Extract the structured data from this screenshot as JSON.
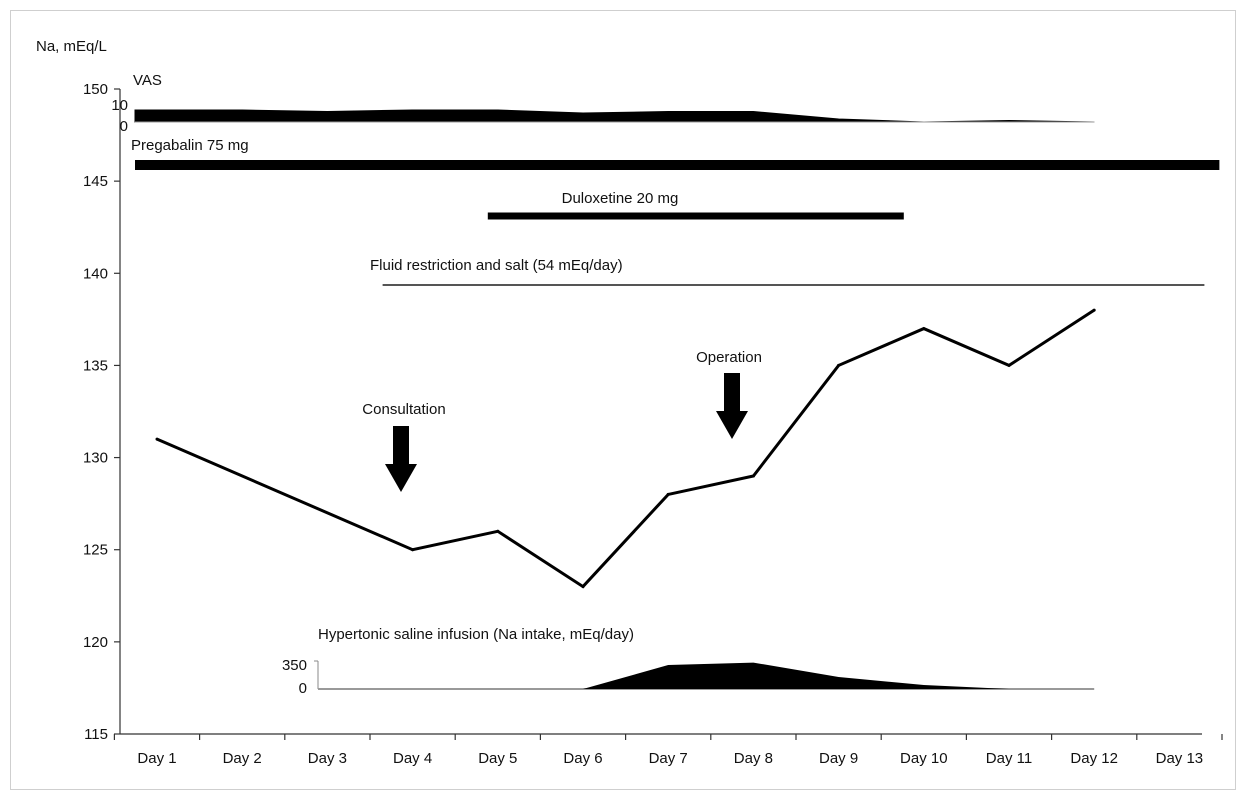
{
  "chart_data": {
    "type": "line",
    "ylabel": "Na, mEq/L",
    "ylim": [
      115,
      150
    ],
    "yticks": [
      115,
      120,
      125,
      130,
      135,
      140,
      145,
      150
    ],
    "categories": [
      "Day 1",
      "Day 2",
      "Day 3",
      "Day 4",
      "Day 5",
      "Day 6",
      "Day 7",
      "Day 8",
      "Day 9",
      "Day 10",
      "Day 11",
      "Day 12",
      "Day 13"
    ],
    "series": [
      {
        "x": [
          "Day 1",
          "Day 4",
          "Day 5",
          "Day 6",
          "Day 7",
          "Day 8",
          "Day 9",
          "Day 10",
          "Day 11",
          "Day 12"
        ],
        "values": [
          131,
          125,
          126,
          123,
          128,
          129,
          135,
          137,
          135,
          138
        ]
      }
    ],
    "annotations": {
      "arrows": [
        {
          "label": "Consultation",
          "x": "Day 4"
        },
        {
          "label": "Operation",
          "x": "Day 8"
        }
      ],
      "vas": {
        "label": "VAS",
        "scale_max_label": "10",
        "scale_min_label": "0",
        "x": [
          "Day 1",
          "Day 2",
          "Day 3",
          "Day 4",
          "Day 5",
          "Day 6",
          "Day 7",
          "Day 8",
          "Day 9",
          "Day 10",
          "Day 11",
          "Day 12"
        ],
        "values": [
          8,
          8,
          7,
          8,
          8,
          6,
          7,
          7,
          2,
          0,
          1,
          0
        ]
      },
      "drugs": [
        {
          "label": "Pregabalin 75 mg",
          "start": "Day 1",
          "end": "Day 13"
        },
        {
          "label": "Duloxetine 20 mg",
          "start": "Day 5",
          "end": "Day 10"
        },
        {
          "label": "Fluid restriction and salt (54 mEq/day)",
          "start": "Day 4",
          "end": "Day 13"
        }
      ],
      "saline": {
        "label": "Hypertonic saline infusion (Na intake, mEq/day)",
        "scale_max_label": "350",
        "scale_min_label": "0",
        "x": [
          "Day 4",
          "Day 5",
          "Day 6",
          "Day 7",
          "Day 8",
          "Day 9",
          "Day 10",
          "Day 11",
          "Day 12"
        ],
        "values": [
          0,
          0,
          0,
          300,
          330,
          150,
          50,
          0,
          0
        ]
      }
    }
  }
}
